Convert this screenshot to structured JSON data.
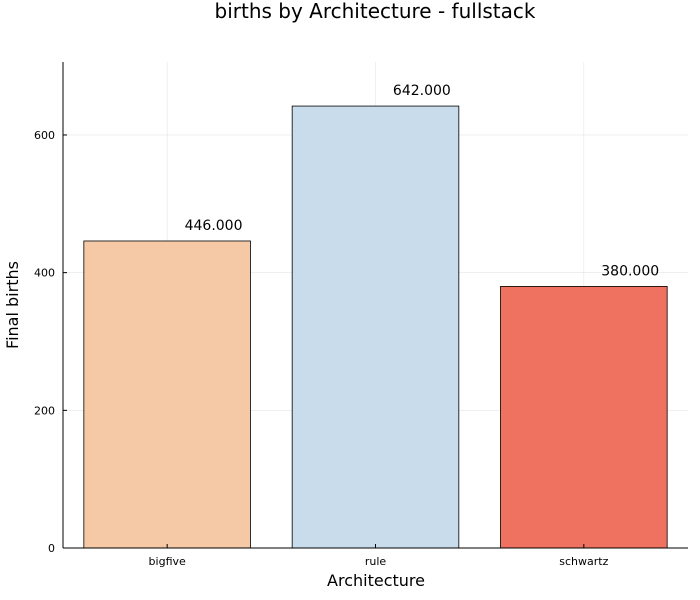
{
  "chart_data": {
    "type": "bar",
    "title": "births by Architecture - fullstack",
    "xlabel": "Architecture",
    "ylabel": "Final births",
    "categories": [
      "bigfive",
      "rule",
      "schwartz"
    ],
    "values": [
      446,
      642,
      380
    ],
    "data_labels": [
      "446.000",
      "642.000",
      "380.000"
    ],
    "colors": [
      "#f5c9a5",
      "#c9dcec",
      "#ef7160"
    ],
    "ylim": [
      0,
      706
    ],
    "yticks": [
      0,
      200,
      400,
      600
    ],
    "grid": true,
    "legend": "none"
  }
}
